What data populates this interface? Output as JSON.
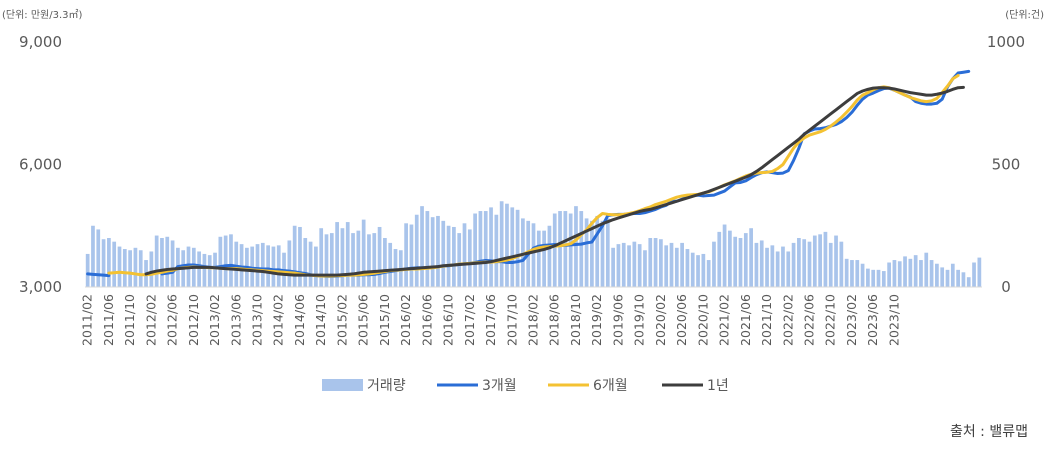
{
  "chart_data": {
    "type": "bar+line",
    "left_axis_unit": "(단위: 만원/3.3㎡)",
    "right_axis_unit": "(단위:건)",
    "left_ticks": [
      "3,000",
      "6,000",
      "9,000"
    ],
    "left_tick_values": [
      3000,
      6000,
      9000
    ],
    "right_ticks": [
      "0",
      "500",
      "1000"
    ],
    "right_tick_values": [
      0,
      500,
      1000
    ],
    "ylim_left": [
      3000,
      9000
    ],
    "ylim_right": [
      0,
      1000
    ],
    "x_labels": [
      "2011/02",
      "2011/06",
      "2011/10",
      "2012/02",
      "2012/06",
      "2012/10",
      "2013/02",
      "2013/06",
      "2013/10",
      "2014/02",
      "2014/06",
      "2014/10",
      "2015/02",
      "2015/06",
      "2015/10",
      "2016/02",
      "2016/06",
      "2016/10",
      "2017/02",
      "2017/06",
      "2017/10",
      "2018/02",
      "2018/06",
      "2018/10",
      "2019/02",
      "2019/06",
      "2019/10",
      "2020/02",
      "2020/06",
      "2020/10",
      "2021/02",
      "2021/06",
      "2021/10",
      "2022/02",
      "2022/06",
      "2022/10",
      "2023/02",
      "2023/06",
      "2023/10"
    ],
    "start_month": "2011/02",
    "series": [
      {
        "name": "거래량",
        "kind": "bar",
        "axis": "right",
        "color": "#a9c4eb",
        "values": [
          135,
          250,
          235,
          195,
          200,
          185,
          165,
          155,
          150,
          160,
          150,
          110,
          145,
          210,
          200,
          205,
          190,
          160,
          150,
          165,
          160,
          145,
          135,
          130,
          140,
          205,
          210,
          215,
          185,
          175,
          160,
          165,
          175,
          180,
          170,
          165,
          170,
          140,
          190,
          250,
          245,
          200,
          185,
          165,
          240,
          215,
          220,
          265,
          240,
          265,
          220,
          230,
          275,
          215,
          220,
          245,
          200,
          180,
          155,
          150,
          260,
          255,
          295,
          330,
          310,
          285,
          290,
          270,
          250,
          245,
          220,
          260,
          235,
          300,
          310,
          310,
          325,
          295,
          350,
          340,
          325,
          315,
          280,
          270,
          260,
          230,
          230,
          250,
          300,
          310,
          310,
          300,
          330,
          310,
          280,
          270,
          290,
          270,
          280,
          160,
          175,
          180,
          170,
          185,
          175,
          150,
          200,
          200,
          195,
          170,
          180,
          160,
          180,
          155,
          140,
          130,
          135,
          110,
          185,
          225,
          255,
          230,
          205,
          200,
          220,
          240,
          180,
          190,
          160,
          170,
          145,
          165,
          145,
          180,
          200,
          195,
          185,
          210,
          215,
          225,
          180,
          210,
          185,
          115,
          110,
          110,
          95,
          75,
          70,
          70,
          65,
          100,
          110,
          105,
          125,
          115,
          130,
          110,
          140,
          110,
          95,
          80,
          70,
          95,
          70,
          60,
          40,
          100,
          120
        ]
      },
      {
        "name": "3개월",
        "kind": "line",
        "axis": "left",
        "color": "#2a6dd6",
        "values": [
          3320,
          3310,
          3300,
          3290,
          3280,
          null,
          null,
          null,
          null,
          null,
          null,
          null,
          null,
          null,
          3320,
          3340,
          3360,
          3500,
          3520,
          3540,
          3540,
          3520,
          3500,
          3480,
          3480,
          3500,
          3520,
          3530,
          3510,
          3490,
          3480,
          3460,
          3450,
          3440,
          3440,
          3420,
          3420,
          3400,
          3390,
          3370,
          3350,
          3330,
          3300,
          3280,
          3270,
          3260,
          3260,
          3270,
          3280,
          3290,
          3290,
          3290,
          3300,
          3300,
          3310,
          3330,
          3360,
          3380,
          3400,
          3420,
          3440,
          3460,
          3470,
          3470,
          3470,
          3480,
          3500,
          3510,
          3520,
          3540,
          3550,
          3570,
          3580,
          3600,
          3630,
          3650,
          3640,
          3620,
          3620,
          3600,
          3600,
          3620,
          3650,
          3800,
          3950,
          4000,
          4020,
          4030,
          4040,
          4020,
          4020,
          4030,
          4040,
          4050,
          4080,
          4100,
          4300,
          4500,
          4750,
          4770,
          4780,
          4780,
          4790,
          4800,
          4800,
          4820,
          4860,
          4900,
          4960,
          5000,
          5100,
          5100,
          5150,
          5200,
          5240,
          5250,
          5230,
          5240,
          5250,
          5300,
          5350,
          5450,
          5550,
          5560,
          5600,
          5680,
          5750,
          5800,
          5820,
          5800,
          5780,
          5790,
          5850,
          6100,
          6400,
          6750,
          6820,
          6870,
          6880,
          6900,
          6940,
          6980,
          7050,
          7150,
          7280,
          7450,
          7600,
          7700,
          7750,
          7810,
          7860,
          7870,
          7820,
          7760,
          7700,
          7650,
          7540,
          7500,
          7480,
          7480,
          7500,
          7600,
          7900,
          8100,
          8240,
          8260,
          8280
        ]
      },
      {
        "name": "6개월",
        "kind": "line",
        "axis": "left",
        "color": "#f4c232",
        "values": [
          null,
          null,
          null,
          null,
          3340,
          3350,
          3360,
          3350,
          3340,
          3320,
          3300,
          3300,
          3310,
          3340,
          3360,
          3390,
          3410,
          3450,
          3470,
          3480,
          3490,
          3480,
          3480,
          3470,
          3470,
          3460,
          3450,
          3450,
          3450,
          3440,
          3430,
          3420,
          3410,
          3400,
          3390,
          3380,
          3370,
          3360,
          3350,
          3340,
          3320,
          3300,
          3290,
          3280,
          3270,
          3270,
          3270,
          3280,
          3280,
          3290,
          3290,
          3300,
          3310,
          3320,
          3340,
          3360,
          3380,
          3400,
          3410,
          3420,
          3430,
          3440,
          3440,
          3450,
          3460,
          3470,
          3490,
          3510,
          3530,
          3540,
          3560,
          3570,
          3580,
          3590,
          3600,
          3610,
          3610,
          3620,
          3640,
          3660,
          3700,
          3750,
          3800,
          3860,
          3920,
          3960,
          3980,
          3990,
          4000,
          4010,
          4030,
          4060,
          4150,
          4280,
          4400,
          4560,
          4700,
          4800,
          4780,
          4770,
          4770,
          4780,
          4800,
          4830,
          4870,
          4920,
          4960,
          5020,
          5060,
          5100,
          5150,
          5200,
          5230,
          5250,
          5260,
          5270,
          5300,
          5330,
          5380,
          5440,
          5500,
          5550,
          5600,
          5660,
          5720,
          5760,
          5790,
          5800,
          5810,
          5830,
          5900,
          6000,
          6200,
          6400,
          6550,
          6650,
          6720,
          6760,
          6800,
          6860,
          6940,
          7040,
          7150,
          7280,
          7420,
          7580,
          7700,
          7760,
          7830,
          7880,
          7900,
          7880,
          7820,
          7760,
          7700,
          7640,
          7600,
          7560,
          7540,
          7560,
          7620,
          7760,
          7920,
          8100,
          8180
        ]
      },
      {
        "name": "1년",
        "kind": "line",
        "axis": "left",
        "color": "#3d3d3d",
        "values": [
          null,
          null,
          null,
          null,
          null,
          null,
          null,
          null,
          null,
          null,
          null,
          3320,
          3360,
          3390,
          3410,
          3430,
          3440,
          3450,
          3460,
          3470,
          3480,
          3480,
          3480,
          3480,
          3470,
          3460,
          3450,
          3440,
          3430,
          3420,
          3410,
          3400,
          3390,
          3380,
          3360,
          3340,
          3320,
          3310,
          3300,
          3290,
          3290,
          3290,
          3290,
          3290,
          3290,
          3290,
          3290,
          3290,
          3300,
          3310,
          3320,
          3340,
          3360,
          3370,
          3380,
          3390,
          3400,
          3410,
          3420,
          3430,
          3440,
          3450,
          3460,
          3470,
          3480,
          3490,
          3500,
          3520,
          3530,
          3540,
          3550,
          3560,
          3570,
          3580,
          3590,
          3600,
          3620,
          3650,
          3680,
          3710,
          3740,
          3770,
          3800,
          3830,
          3860,
          3890,
          3920,
          3960,
          4010,
          4070,
          4130,
          4190,
          4250,
          4310,
          4370,
          4430,
          4490,
          4550,
          4600,
          4650,
          4690,
          4730,
          4770,
          4810,
          4850,
          4880,
          4900,
          4940,
          4980,
          5020,
          5060,
          5100,
          5140,
          5180,
          5220,
          5260,
          5300,
          5340,
          5390,
          5440,
          5490,
          5540,
          5590,
          5640,
          5690,
          5750,
          5830,
          5920,
          6020,
          6120,
          6220,
          6320,
          6420,
          6520,
          6620,
          6740,
          6840,
          6940,
          7040,
          7140,
          7240,
          7340,
          7440,
          7540,
          7640,
          7740,
          7800,
          7840,
          7870,
          7880,
          7880,
          7870,
          7850,
          7820,
          7790,
          7760,
          7740,
          7720,
          7700,
          7700,
          7720,
          7750,
          7790,
          7840,
          7880,
          7890
        ]
      }
    ],
    "legend": [
      {
        "name": "거래량",
        "color": "#a9c4eb",
        "style": "bar"
      },
      {
        "name": "3개월",
        "color": "#2a6dd6",
        "style": "line"
      },
      {
        "name": "6개월",
        "color": "#f4c232",
        "style": "line"
      },
      {
        "name": "1년",
        "color": "#3d3d3d",
        "style": "line"
      }
    ],
    "legend_position": "bottom",
    "grid": false
  },
  "source_label": "출처 : 밸류맵"
}
